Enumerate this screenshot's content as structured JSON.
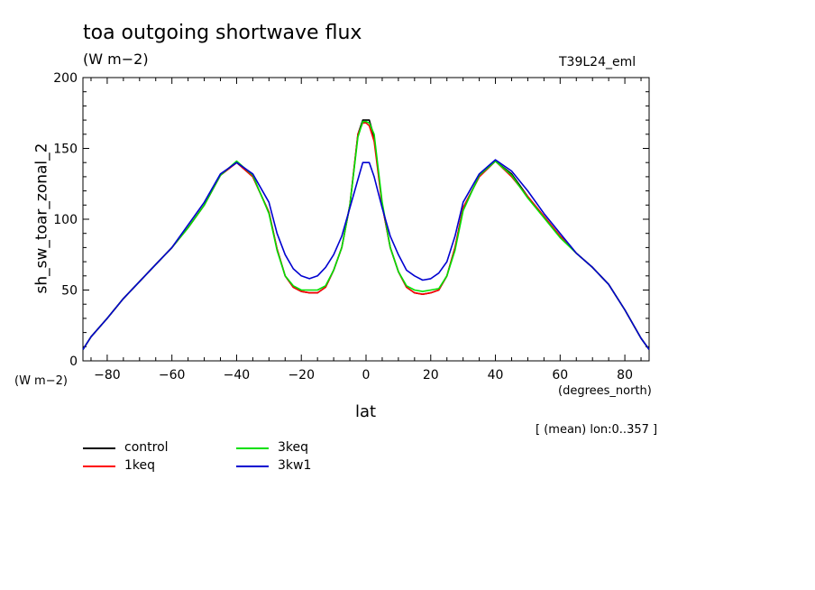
{
  "header": {
    "title": "toa outgoing shortwave flux",
    "units": "(W m−2)",
    "run_id": "T39L24_eml"
  },
  "footer": {
    "units_left": "(W m−2)",
    "x_units": "(degrees_north)",
    "averaging_note": "[ (mean) lon:0..357 ]"
  },
  "legend": [
    {
      "name": "control",
      "color": "#000000"
    },
    {
      "name": "1keq",
      "color": "#ff0000"
    },
    {
      "name": "3keq",
      "color": "#00e000"
    },
    {
      "name": "3kw1",
      "color": "#0000d0"
    }
  ],
  "chart_data": {
    "type": "line",
    "xlabel": "lat",
    "ylabel": "sh_sw_toar_zonal_2",
    "xlim": [
      -87.5,
      87.5
    ],
    "ylim": [
      0,
      200
    ],
    "xticks": [
      -80,
      -60,
      -40,
      -20,
      0,
      20,
      40,
      60,
      80
    ],
    "yticks": [
      0,
      50,
      100,
      150,
      200
    ],
    "grid": false,
    "legend_position": "bottom-left",
    "x": [
      -87.5,
      -85,
      -80,
      -75,
      -70,
      -65,
      -60,
      -55,
      -50,
      -45,
      -40,
      -35,
      -30,
      -27.5,
      -25,
      -22.5,
      -20,
      -17.5,
      -15,
      -12.5,
      -10,
      -7.5,
      -5,
      -2.5,
      -1,
      0,
      1,
      2.5,
      5,
      7.5,
      10,
      12.5,
      15,
      17.5,
      20,
      22.5,
      25,
      27.5,
      30,
      35,
      40,
      45,
      50,
      55,
      60,
      65,
      70,
      75,
      80,
      85,
      87.5
    ],
    "series": [
      {
        "name": "control",
        "color": "#000000",
        "values": [
          8,
          17,
          30,
          44,
          56,
          68,
          80,
          94,
          110,
          131,
          140,
          130,
          105,
          79,
          60,
          52,
          49,
          48,
          48,
          52,
          64,
          80,
          110,
          160,
          170,
          170,
          170,
          158,
          110,
          80,
          63,
          52,
          48,
          47,
          48,
          50,
          60,
          80,
          108,
          130,
          141,
          132,
          116,
          102,
          88,
          76,
          66,
          54,
          36,
          16,
          8
        ]
      },
      {
        "name": "1keq",
        "color": "#ff0000",
        "values": [
          8,
          17,
          30,
          44,
          56,
          68,
          80,
          94,
          110,
          131,
          140,
          130,
          105,
          79,
          60,
          52,
          49,
          48,
          48,
          52,
          64,
          80,
          110,
          160,
          168,
          168,
          166,
          155,
          110,
          80,
          63,
          52,
          48,
          47,
          48,
          50,
          60,
          80,
          108,
          130,
          141,
          130,
          116,
          102,
          88,
          76,
          66,
          54,
          36,
          16,
          8
        ]
      },
      {
        "name": "3keq",
        "color": "#00e000",
        "values": [
          8,
          17,
          30,
          44,
          56,
          68,
          80,
          94,
          110,
          131,
          141,
          131,
          104,
          78,
          60,
          53,
          50,
          50,
          50,
          53,
          64,
          80,
          110,
          158,
          169,
          169,
          168,
          160,
          112,
          80,
          63,
          53,
          50,
          49,
          50,
          51,
          60,
          78,
          106,
          131,
          141,
          131,
          115,
          101,
          87,
          76,
          66,
          54,
          36,
          16,
          8
        ]
      },
      {
        "name": "3kw1",
        "color": "#0000d0",
        "values": [
          8,
          17,
          30,
          44,
          56,
          68,
          80,
          96,
          112,
          132,
          140,
          132,
          112,
          90,
          75,
          65,
          60,
          58,
          60,
          66,
          75,
          88,
          108,
          128,
          140,
          140,
          140,
          130,
          108,
          88,
          75,
          64,
          60,
          57,
          58,
          62,
          70,
          88,
          112,
          132,
          142,
          134,
          120,
          104,
          90,
          76,
          66,
          54,
          36,
          16,
          8
        ]
      }
    ]
  }
}
